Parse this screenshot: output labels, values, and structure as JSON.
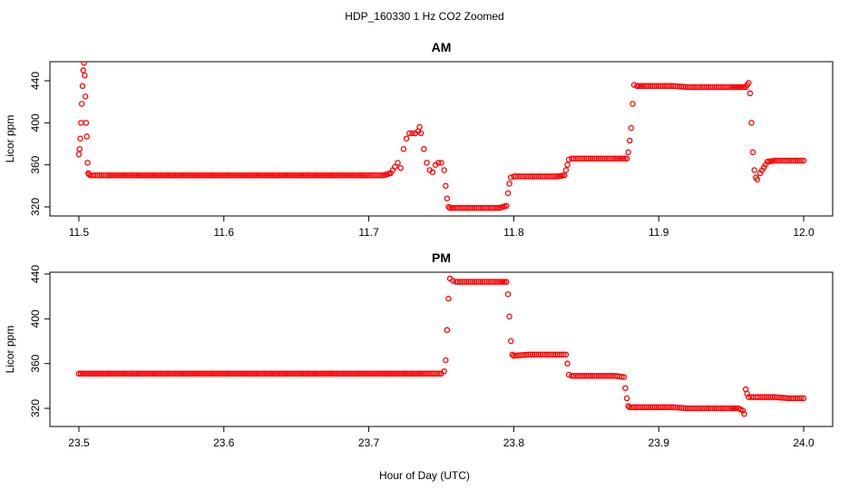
{
  "figure": {
    "title": "HDP_160330  1 Hz CO2 Zoomed",
    "xlabel": "Hour of Day (UTC)"
  },
  "chart_data": [
    {
      "type": "scatter",
      "title": "AM",
      "xlabel": "",
      "ylabel": "Licor ppm",
      "xlim": [
        11.5,
        12.0
      ],
      "ylim": [
        320,
        460
      ],
      "xticks": [
        "11.5",
        "11.6",
        "11.7",
        "11.8",
        "11.9",
        "12.0"
      ],
      "yticks": [
        "320",
        "360",
        "400",
        "440"
      ],
      "marker": "open-circle",
      "color": "#ff0000",
      "series": [
        {
          "x": [
            11.5,
            11.5005,
            11.501,
            11.5015,
            11.502,
            11.5025,
            11.503,
            11.5035,
            11.504,
            11.5045,
            11.505,
            11.5055,
            11.506,
            11.5065,
            11.507,
            11.508,
            11.51,
            11.52,
            11.54,
            11.56,
            11.58,
            11.6,
            11.62,
            11.64,
            11.66,
            11.68,
            11.7,
            11.71,
            11.715,
            11.718,
            11.72,
            11.722,
            11.724,
            11.726,
            11.728,
            11.73,
            11.732,
            11.734,
            11.735,
            11.736,
            11.738,
            11.74,
            11.742,
            11.744,
            11.746,
            11.748,
            11.75,
            11.752,
            11.753,
            11.754,
            11.755,
            11.756,
            11.76,
            11.77,
            11.78,
            11.79,
            11.795,
            11.796,
            11.797,
            11.798,
            11.8,
            11.81,
            11.82,
            11.83,
            11.835,
            11.836,
            11.837,
            11.838,
            11.84,
            11.85,
            11.86,
            11.87,
            11.878,
            11.879,
            11.88,
            11.881,
            11.882,
            11.883,
            11.885,
            11.89,
            11.9,
            11.91,
            11.92,
            11.93,
            11.94,
            11.95,
            11.955,
            11.96,
            11.961,
            11.962,
            11.963,
            11.964,
            11.965,
            11.966,
            11.967,
            11.968,
            11.97,
            11.975,
            11.98,
            11.99,
            12.0
          ],
          "y": [
            370,
            375,
            385,
            400,
            418,
            435,
            450,
            457,
            445,
            425,
            400,
            387,
            362,
            352,
            351,
            350,
            350,
            350,
            350,
            350,
            350,
            350,
            350,
            350,
            350,
            350,
            350,
            350,
            352,
            358,
            362,
            357,
            375,
            385,
            390,
            390,
            390,
            392,
            396,
            390,
            375,
            362,
            355,
            353,
            360,
            362,
            362,
            355,
            340,
            328,
            320,
            319,
            319,
            319,
            319,
            319,
            321,
            333,
            342,
            348,
            349,
            349,
            349,
            349,
            350,
            355,
            360,
            365,
            366,
            366,
            366,
            366,
            366,
            372,
            383,
            395,
            418,
            436,
            435,
            435,
            435,
            435,
            434,
            434,
            434,
            434,
            434,
            434,
            436,
            438,
            428,
            400,
            372,
            355,
            348,
            346,
            352,
            363,
            364,
            364,
            364
          ]
        }
      ]
    },
    {
      "type": "scatter",
      "title": "PM",
      "xlabel": "",
      "ylabel": "Licor ppm",
      "xlim": [
        23.5,
        24.0
      ],
      "ylim": [
        310,
        440
      ],
      "xticks": [
        "23.5",
        "23.6",
        "23.7",
        "23.8",
        "23.9",
        "24.0"
      ],
      "yticks": [
        "320",
        "360",
        "400",
        "440"
      ],
      "marker": "open-circle",
      "color": "#ff0000",
      "series": [
        {
          "x": [
            23.5,
            23.52,
            23.54,
            23.56,
            23.58,
            23.6,
            23.62,
            23.64,
            23.66,
            23.68,
            23.7,
            23.72,
            23.74,
            23.75,
            23.752,
            23.753,
            23.754,
            23.755,
            23.756,
            23.758,
            23.76,
            23.77,
            23.78,
            23.79,
            23.795,
            23.796,
            23.797,
            23.798,
            23.799,
            23.8,
            23.81,
            23.82,
            23.83,
            23.836,
            23.837,
            23.838,
            23.84,
            23.85,
            23.86,
            23.87,
            23.876,
            23.877,
            23.878,
            23.879,
            23.88,
            23.89,
            23.9,
            23.91,
            23.92,
            23.93,
            23.94,
            23.95,
            23.955,
            23.958,
            23.959,
            23.96,
            23.961,
            23.962,
            23.964,
            23.97,
            23.98,
            23.99,
            24.0
          ],
          "y": [
            351,
            351,
            351,
            351,
            351,
            351,
            351,
            351,
            351,
            351,
            351,
            351,
            351,
            351,
            353,
            363,
            390,
            418,
            436,
            434,
            433,
            433,
            433,
            433,
            433,
            422,
            402,
            380,
            368,
            367,
            368,
            368,
            368,
            368,
            360,
            350,
            349,
            349,
            349,
            349,
            348,
            338,
            329,
            322,
            321,
            321,
            321,
            321,
            320,
            320,
            320,
            320,
            320,
            318,
            315,
            337,
            333,
            330,
            330,
            330,
            330,
            329,
            329
          ]
        }
      ]
    }
  ]
}
